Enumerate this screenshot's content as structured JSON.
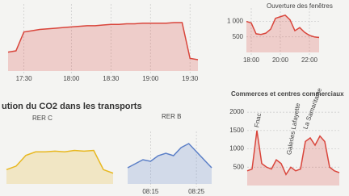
{
  "heading": "ution du CO2 dans les transports",
  "chart_data": [
    {
      "type": "line",
      "color": "#d9453b",
      "ylim": [
        0,
        100
      ],
      "categories": [
        null,
        null,
        "17:30",
        null,
        null,
        null,
        null,
        null,
        "18:00",
        null,
        null,
        null,
        null,
        "18:30",
        null,
        null,
        null,
        null,
        "19:00",
        null,
        null,
        null,
        null,
        "19:30",
        null
      ],
      "values": [
        30,
        32,
        62,
        64,
        66,
        67,
        68,
        69,
        70,
        71,
        72,
        72,
        73,
        74,
        74,
        75,
        75,
        76,
        76,
        76,
        76,
        77,
        77,
        20,
        18
      ]
    },
    {
      "type": "line",
      "color": "#d9453b",
      "ylim": [
        0,
        1300
      ],
      "yticks": [
        {
          "value": 1000,
          "label": "1 000"
        },
        500
      ],
      "annotations": [
        "Ouverture des fenêtres"
      ],
      "categories": [
        null,
        "18:00",
        null,
        null,
        null,
        null,
        null,
        "20:00",
        null,
        null,
        null,
        null,
        null,
        "22:00",
        null,
        null
      ],
      "values": [
        1000,
        950,
        600,
        580,
        620,
        750,
        1100,
        1150,
        1200,
        1050,
        700,
        800,
        650,
        550,
        500,
        480
      ]
    },
    {
      "type": "line",
      "title": "RER C",
      "color": "#e8b820",
      "ylim": [
        0,
        60
      ],
      "categories": [
        null,
        null,
        null,
        null,
        null,
        null,
        null,
        null,
        null,
        null,
        null,
        null
      ],
      "values": [
        20,
        25,
        40,
        45,
        45,
        46,
        45,
        47,
        46,
        47,
        20,
        15
      ]
    },
    {
      "type": "line",
      "title": "RER B",
      "color": "#5b7fc7",
      "ylim": [
        0,
        60
      ],
      "categories": [
        null,
        null,
        null,
        "08:15",
        null,
        null,
        null,
        null,
        null,
        "08:25",
        null,
        null
      ],
      "values": [
        20,
        25,
        30,
        28,
        35,
        38,
        35,
        45,
        50,
        40,
        30,
        20
      ]
    },
    {
      "type": "line",
      "title": "Commerces et centres commerciaux",
      "color": "#d9453b",
      "ylim": [
        0,
        2200
      ],
      "yticks": [
        2000,
        1500,
        1000,
        500
      ],
      "annotations": [
        "Fnac",
        "Galeries Lafayette",
        "La Samaritaine"
      ],
      "categories": [
        null,
        null,
        null,
        null,
        null,
        null,
        null,
        null,
        null,
        null,
        null,
        null,
        null,
        null,
        null,
        null,
        null,
        null,
        null,
        null
      ],
      "values": [
        400,
        450,
        1500,
        600,
        500,
        450,
        700,
        600,
        300,
        500,
        400,
        450,
        1200,
        1300,
        1100,
        1350,
        1200,
        500,
        400,
        350
      ]
    }
  ]
}
